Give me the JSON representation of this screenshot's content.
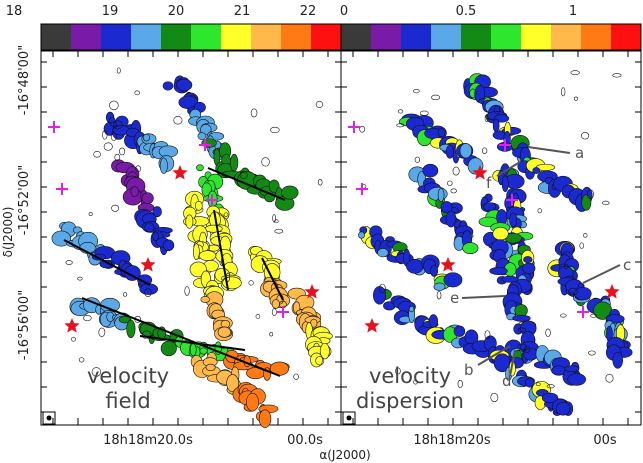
{
  "chart_data": [
    {
      "type": "heatmap",
      "panel_label": "velocity\nfield",
      "colorbar": {
        "ticks": [
          "18",
          "19",
          "20",
          "21",
          "22"
        ],
        "colors": [
          "#3a3a3a",
          "#7a1aa8",
          "#1a2ad0",
          "#5aa8e8",
          "#138a13",
          "#2ee62e",
          "#ffff2a",
          "#ffb84a",
          "#ff7a12",
          "#ff1010"
        ]
      },
      "xticks": [
        "18h18m20.0s",
        "00.0s"
      ],
      "yticks": [
        "-16°48'00\"",
        "-16°52'00\"",
        "-16°56'00\""
      ],
      "ylabel": "δ(J2000)"
    },
    {
      "type": "heatmap",
      "panel_label": "velocity\ndispersion",
      "colorbar": {
        "ticks": [
          "0",
          "0.5",
          "1"
        ],
        "colors": [
          "#3a3a3a",
          "#7a1aa8",
          "#1a2ad0",
          "#5aa8e8",
          "#138a13",
          "#2ee62e",
          "#ffff2a",
          "#ffb84a",
          "#ff7a12",
          "#ff1010"
        ]
      },
      "xticks": [
        "18h18m20s",
        "00s"
      ],
      "annotations": [
        "a",
        "b",
        "c",
        "d",
        "e",
        "f"
      ]
    }
  ],
  "xlabel": "α(J2000)",
  "marker_colors": {
    "star": "#e8101a",
    "cross": "#e020e8"
  }
}
